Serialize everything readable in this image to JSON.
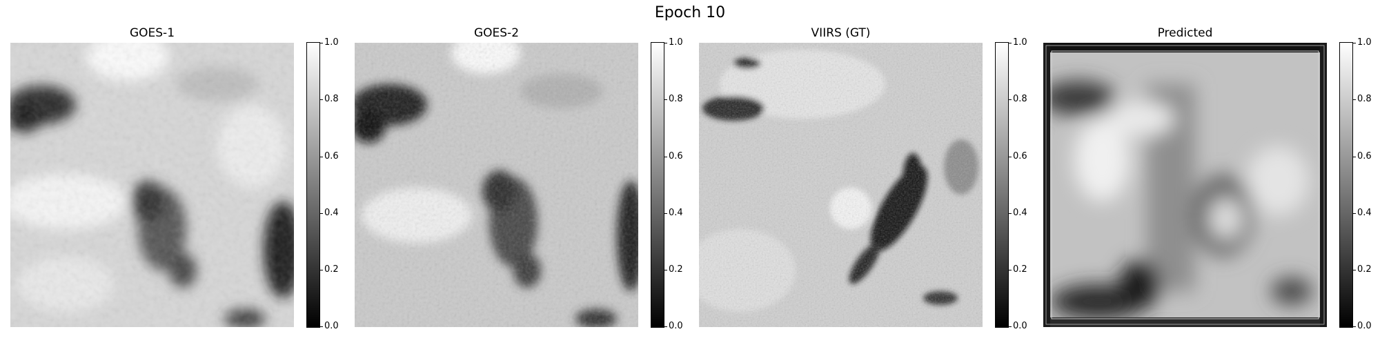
{
  "figure": {
    "title": "Epoch 10"
  },
  "panels": [
    {
      "title": "GOES-1"
    },
    {
      "title": "GOES-2"
    },
    {
      "title": "VIIRS (GT)"
    },
    {
      "title": "Predicted"
    }
  ],
  "colorbar": {
    "ticks": [
      "1.0",
      "0.8",
      "0.6",
      "0.4",
      "0.2",
      "0.0"
    ],
    "colormap": "gray",
    "range": [
      0.0,
      1.0
    ]
  }
}
